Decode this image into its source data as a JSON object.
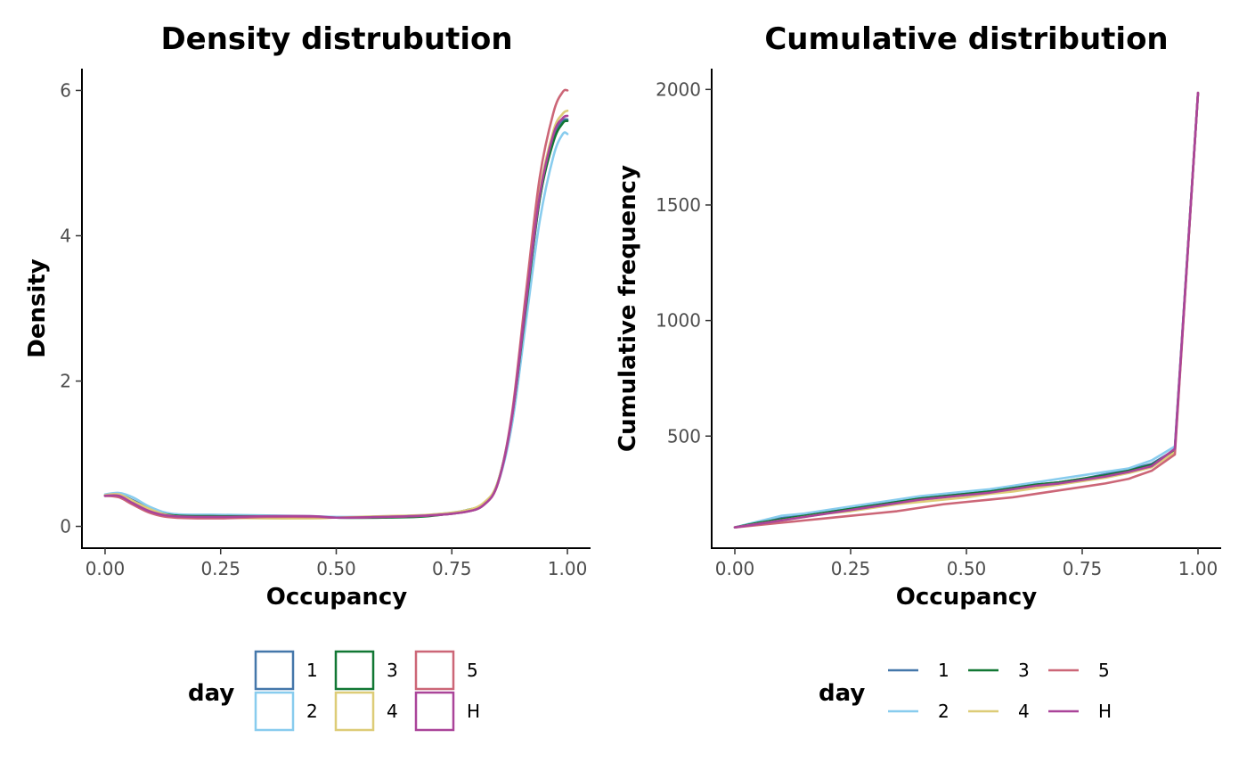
{
  "chart_data": [
    {
      "type": "line",
      "title": "Density distrubution",
      "xlabel": "Occupancy",
      "ylabel": "Density",
      "xlim": [
        -0.05,
        1.05
      ],
      "ylim": [
        -0.3,
        6.3
      ],
      "xticks": [
        0.0,
        0.25,
        0.5,
        0.75,
        1.0
      ],
      "xtick_labels": [
        "0.00",
        "0.25",
        "0.50",
        "0.75",
        "1.00"
      ],
      "yticks": [
        0,
        2,
        4,
        6
      ],
      "ytick_labels": [
        "0",
        "2",
        "4",
        "6"
      ],
      "grid": false,
      "legend_position": "bottom",
      "legend_title": "day",
      "series": [
        {
          "name": "1",
          "color": "#4477AA",
          "x": [
            0,
            0.03,
            0.06,
            0.1,
            0.15,
            0.25,
            0.35,
            0.45,
            0.5,
            0.6,
            0.7,
            0.78,
            0.82,
            0.85,
            0.88,
            0.91,
            0.94,
            0.97,
            0.99,
            1.0
          ],
          "y": [
            0.43,
            0.44,
            0.36,
            0.24,
            0.16,
            0.14,
            0.14,
            0.13,
            0.12,
            0.13,
            0.15,
            0.2,
            0.3,
            0.6,
            1.5,
            3.0,
            4.5,
            5.35,
            5.58,
            5.6
          ]
        },
        {
          "name": "2",
          "color": "#88CCEE",
          "x": [
            0,
            0.03,
            0.06,
            0.1,
            0.15,
            0.25,
            0.35,
            0.45,
            0.5,
            0.6,
            0.7,
            0.78,
            0.82,
            0.85,
            0.88,
            0.91,
            0.94,
            0.97,
            0.99,
            1.0
          ],
          "y": [
            0.44,
            0.46,
            0.4,
            0.26,
            0.17,
            0.16,
            0.15,
            0.14,
            0.13,
            0.14,
            0.16,
            0.22,
            0.32,
            0.6,
            1.4,
            2.8,
            4.2,
            5.1,
            5.4,
            5.4
          ]
        },
        {
          "name": "3",
          "color": "#117733",
          "x": [
            0,
            0.03,
            0.06,
            0.1,
            0.15,
            0.25,
            0.35,
            0.45,
            0.5,
            0.6,
            0.7,
            0.78,
            0.82,
            0.85,
            0.88,
            0.91,
            0.94,
            0.97,
            0.99,
            1.0
          ],
          "y": [
            0.42,
            0.43,
            0.34,
            0.22,
            0.15,
            0.14,
            0.14,
            0.13,
            0.12,
            0.12,
            0.14,
            0.22,
            0.32,
            0.62,
            1.5,
            3.0,
            4.5,
            5.3,
            5.55,
            5.58
          ]
        },
        {
          "name": "4",
          "color": "#DDCC77",
          "x": [
            0,
            0.03,
            0.06,
            0.1,
            0.15,
            0.25,
            0.35,
            0.45,
            0.5,
            0.6,
            0.7,
            0.78,
            0.82,
            0.85,
            0.88,
            0.91,
            0.94,
            0.97,
            0.99,
            1.0
          ],
          "y": [
            0.43,
            0.44,
            0.35,
            0.23,
            0.14,
            0.12,
            0.11,
            0.11,
            0.12,
            0.14,
            0.16,
            0.22,
            0.33,
            0.62,
            1.5,
            3.1,
            4.6,
            5.45,
            5.68,
            5.72
          ]
        },
        {
          "name": "5",
          "color": "#CC6677",
          "x": [
            0,
            0.03,
            0.06,
            0.1,
            0.15,
            0.25,
            0.35,
            0.45,
            0.5,
            0.6,
            0.7,
            0.78,
            0.82,
            0.85,
            0.88,
            0.91,
            0.94,
            0.97,
            0.99,
            1.0
          ],
          "y": [
            0.42,
            0.4,
            0.3,
            0.18,
            0.12,
            0.11,
            0.13,
            0.13,
            0.12,
            0.13,
            0.15,
            0.2,
            0.3,
            0.6,
            1.55,
            3.2,
            4.8,
            5.7,
            5.98,
            6.0
          ]
        },
        {
          "name": "H",
          "color": "#AA4499",
          "x": [
            0,
            0.03,
            0.06,
            0.1,
            0.15,
            0.25,
            0.35,
            0.45,
            0.5,
            0.6,
            0.7,
            0.78,
            0.82,
            0.85,
            0.88,
            0.91,
            0.94,
            0.97,
            0.99,
            1.0
          ],
          "y": [
            0.42,
            0.42,
            0.32,
            0.2,
            0.14,
            0.13,
            0.14,
            0.14,
            0.12,
            0.13,
            0.15,
            0.2,
            0.3,
            0.6,
            1.5,
            3.05,
            4.55,
            5.4,
            5.62,
            5.65
          ]
        }
      ]
    },
    {
      "type": "line",
      "title": "Cumulative distribution",
      "xlabel": "Occupancy",
      "ylabel": "Cumulative frequency",
      "xlim": [
        -0.05,
        1.05
      ],
      "ylim": [
        15,
        2090
      ],
      "xticks": [
        0.0,
        0.25,
        0.5,
        0.75,
        1.0
      ],
      "xtick_labels": [
        "0.00",
        "0.25",
        "0.50",
        "0.75",
        "1.00"
      ],
      "yticks": [
        500,
        1000,
        1500,
        2000
      ],
      "ytick_labels": [
        "500",
        "1000",
        "1500",
        "2000"
      ],
      "grid": false,
      "legend_position": "bottom",
      "legend_title": "day",
      "series": [
        {
          "name": "1",
          "color": "#4477AA",
          "x": [
            0,
            0.05,
            0.1,
            0.15,
            0.2,
            0.25,
            0.3,
            0.35,
            0.4,
            0.45,
            0.5,
            0.55,
            0.6,
            0.65,
            0.7,
            0.75,
            0.8,
            0.85,
            0.9,
            0.95,
            1.0
          ],
          "y": [
            105,
            125,
            145,
            160,
            175,
            190,
            205,
            220,
            235,
            245,
            255,
            265,
            280,
            290,
            300,
            315,
            335,
            355,
            380,
            440,
            1985
          ]
        },
        {
          "name": "2",
          "color": "#88CCEE",
          "x": [
            0,
            0.05,
            0.1,
            0.15,
            0.2,
            0.25,
            0.3,
            0.35,
            0.4,
            0.45,
            0.5,
            0.55,
            0.6,
            0.65,
            0.7,
            0.75,
            0.8,
            0.85,
            0.9,
            0.95,
            1.0
          ],
          "y": [
            105,
            130,
            155,
            165,
            180,
            195,
            210,
            225,
            240,
            250,
            260,
            270,
            285,
            300,
            315,
            330,
            345,
            360,
            395,
            455,
            1985
          ]
        },
        {
          "name": "3",
          "color": "#117733",
          "x": [
            0,
            0.05,
            0.1,
            0.15,
            0.2,
            0.25,
            0.3,
            0.35,
            0.4,
            0.45,
            0.5,
            0.55,
            0.6,
            0.65,
            0.7,
            0.75,
            0.8,
            0.85,
            0.9,
            0.95,
            1.0
          ],
          "y": [
            105,
            125,
            140,
            155,
            170,
            185,
            200,
            215,
            230,
            240,
            250,
            260,
            275,
            290,
            300,
            315,
            330,
            350,
            375,
            440,
            1985
          ]
        },
        {
          "name": "4",
          "color": "#DDCC77",
          "x": [
            0,
            0.05,
            0.1,
            0.15,
            0.2,
            0.25,
            0.3,
            0.35,
            0.4,
            0.45,
            0.5,
            0.55,
            0.6,
            0.65,
            0.7,
            0.75,
            0.8,
            0.85,
            0.9,
            0.95,
            1.0
          ],
          "y": [
            105,
            120,
            135,
            150,
            165,
            175,
            190,
            205,
            215,
            225,
            235,
            250,
            260,
            275,
            290,
            305,
            320,
            340,
            365,
            430,
            1985
          ]
        },
        {
          "name": "5",
          "color": "#CC6677",
          "x": [
            0,
            0.05,
            0.1,
            0.15,
            0.2,
            0.25,
            0.3,
            0.35,
            0.4,
            0.45,
            0.5,
            0.55,
            0.6,
            0.65,
            0.7,
            0.75,
            0.8,
            0.85,
            0.9,
            0.95,
            1.0
          ],
          "y": [
            105,
            115,
            125,
            135,
            145,
            155,
            165,
            175,
            190,
            205,
            215,
            225,
            235,
            250,
            265,
            280,
            295,
            315,
            350,
            420,
            1985
          ]
        },
        {
          "name": "H",
          "color": "#AA4499",
          "x": [
            0,
            0.05,
            0.1,
            0.15,
            0.2,
            0.25,
            0.3,
            0.35,
            0.4,
            0.45,
            0.5,
            0.55,
            0.6,
            0.65,
            0.7,
            0.75,
            0.8,
            0.85,
            0.9,
            0.95,
            1.0
          ],
          "y": [
            105,
            120,
            135,
            150,
            165,
            180,
            195,
            210,
            225,
            235,
            245,
            255,
            270,
            285,
            295,
            310,
            325,
            345,
            370,
            445,
            1985
          ]
        }
      ]
    }
  ]
}
